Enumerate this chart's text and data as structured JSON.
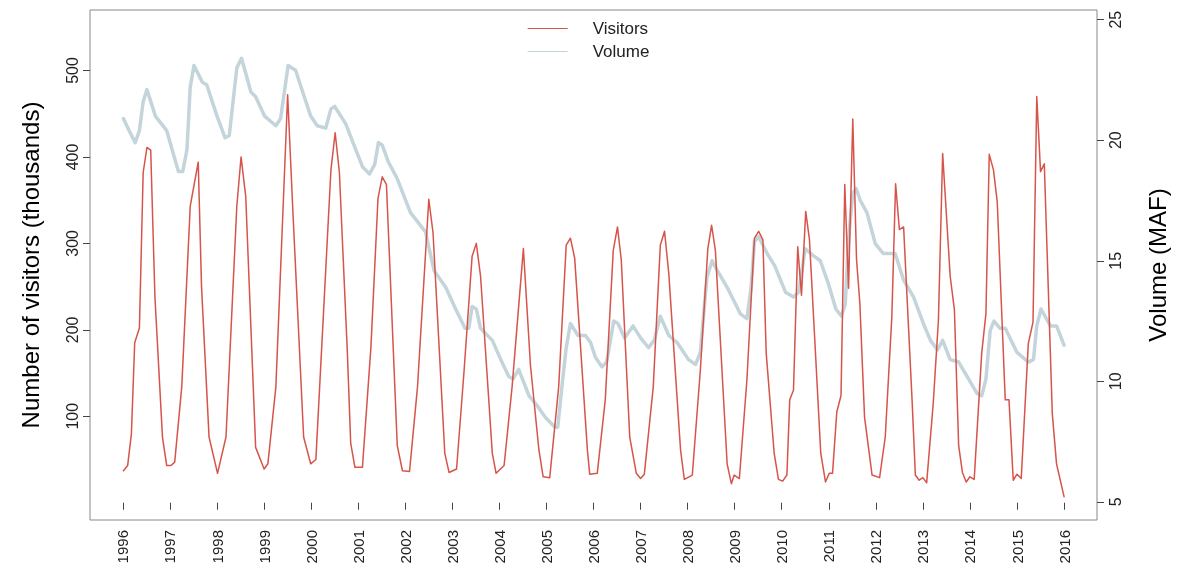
{
  "chart_data": {
    "type": "line",
    "xlabel": null,
    "ylabel": "Number of visitors (thousands)",
    "y2label": "Volume (MAF)",
    "xlim": [
      1995.3,
      2016.7
    ],
    "xticks": [
      1996,
      1997,
      1998,
      1999,
      2000,
      2001,
      2002,
      2003,
      2004,
      2005,
      2006,
      2007,
      2008,
      2009,
      2010,
      2011,
      2012,
      2013,
      2014,
      2015,
      2016
    ],
    "ylim": [
      -20,
      570
    ],
    "yticks": [
      100,
      200,
      300,
      400,
      500
    ],
    "y2lim": [
      4.25,
      25.4
    ],
    "y2ticks": [
      5,
      10,
      15,
      20,
      25
    ],
    "legend": "top",
    "grid": false,
    "series": [
      {
        "name": "Visitors",
        "color": "#d6544a",
        "x": [
          1996.01,
          1996.1,
          1996.18,
          1996.25,
          1996.35,
          1996.43,
          1996.51,
          1996.59,
          1996.68,
          1996.84,
          1996.93,
          1997.02,
          1997.1,
          1997.25,
          1997.43,
          1997.6,
          1997.67,
          1997.83,
          1998.01,
          1998.19,
          1998.42,
          1998.51,
          1998.61,
          1998.82,
          1999.0,
          1999.08,
          1999.25,
          1999.5,
          1999.62,
          1999.84,
          1999.99,
          2000.1,
          2000.42,
          2000.51,
          2000.6,
          2000.77,
          2000.84,
          2000.93,
          2001.09,
          2001.27,
          2001.42,
          2001.51,
          2001.6,
          2001.83,
          2001.94,
          2002.09,
          2002.26,
          2002.5,
          2002.59,
          2002.84,
          2002.93,
          2003.09,
          2003.25,
          2003.42,
          2003.51,
          2003.6,
          2003.85,
          2003.93,
          2004.1,
          2004.27,
          2004.51,
          2004.66,
          2004.84,
          2004.93,
          2005.07,
          2005.26,
          2005.42,
          2005.51,
          2005.6,
          2005.87,
          2005.92,
          2006.08,
          2006.25,
          2006.42,
          2006.51,
          2006.59,
          2006.77,
          2006.91,
          2007.0,
          2007.08,
          2007.27,
          2007.42,
          2007.51,
          2007.6,
          2007.85,
          2007.93,
          2008.1,
          2008.27,
          2008.43,
          2008.51,
          2008.59,
          2008.84,
          2008.93,
          2008.99,
          2009.1,
          2009.26,
          2009.42,
          2009.51,
          2009.6,
          2009.67,
          2009.84,
          2009.93,
          2010.02,
          2010.11,
          2010.17,
          2010.25,
          2010.34,
          2010.42,
          2010.51,
          2010.59,
          2010.83,
          2010.93,
          2011.01,
          2011.08,
          2011.17,
          2011.26,
          2011.34,
          2011.42,
          2011.51,
          2011.59,
          2011.66,
          2011.76,
          2011.92,
          2012.08,
          2012.2,
          2012.34,
          2012.42,
          2012.5,
          2012.59,
          2012.77,
          2012.84,
          2012.92,
          2013.0,
          2013.08,
          2013.22,
          2013.33,
          2013.42,
          2013.58,
          2013.67,
          2013.76,
          2013.84,
          2013.92,
          2014.0,
          2014.09,
          2014.25,
          2014.34,
          2014.41,
          2014.5,
          2014.58,
          2014.75,
          2014.83,
          2014.92,
          2015.0,
          2015.09,
          2015.24,
          2015.34,
          2015.42,
          2015.5,
          2015.58,
          2015.75,
          2015.84,
          2016.0
        ],
        "values": [
          37,
          43,
          80,
          185,
          202,
          382,
          411,
          408,
          238,
          76,
          43,
          43,
          47,
          134,
          343,
          394,
          250,
          76,
          34,
          76,
          343,
          400,
          354,
          64,
          39,
          45,
          134,
          472,
          327,
          76,
          45,
          50,
          385,
          428,
          382,
          173,
          69,
          41,
          41,
          180,
          352,
          377,
          368,
          66,
          37,
          36,
          134,
          351,
          312,
          57,
          35,
          39,
          153,
          285,
          300,
          262,
          57,
          34,
          43,
          134,
          294,
          159,
          61,
          30,
          29,
          134,
          298,
          306,
          283,
          61,
          33,
          34,
          119,
          292,
          319,
          281,
          76,
          34,
          28,
          33,
          134,
          298,
          314,
          265,
          61,
          27,
          32,
          153,
          294,
          321,
          292,
          45,
          22,
          32,
          28,
          142,
          306,
          314,
          304,
          173,
          57,
          27,
          25,
          32,
          119,
          130,
          296,
          240,
          337,
          304,
          57,
          24,
          34,
          34,
          105,
          124,
          368,
          248,
          444,
          281,
          231,
          99,
          32,
          29,
          76,
          215,
          369,
          316,
          319,
          119,
          32,
          26,
          29,
          23,
          115,
          211,
          404,
          262,
          223,
          66,
          35,
          24,
          30,
          27,
          173,
          219,
          403,
          385,
          348,
          119,
          119,
          26,
          33,
          28,
          184,
          209,
          470,
          383,
          392,
          103,
          45,
          7
        ]
      },
      {
        "name": "Volume",
        "color": "#c3d5da",
        "axis": "y2",
        "x": [
          1996.01,
          1996.13,
          1996.26,
          1996.35,
          1996.43,
          1996.51,
          1996.69,
          1996.81,
          1996.93,
          1997.09,
          1997.18,
          1997.27,
          1997.36,
          1997.43,
          1997.51,
          1997.69,
          1997.78,
          1998.0,
          1998.17,
          1998.26,
          1998.42,
          1998.52,
          1998.72,
          1998.82,
          1999.01,
          1999.25,
          1999.35,
          1999.51,
          1999.67,
          1999.82,
          1999.99,
          2000.13,
          2000.31,
          2000.42,
          2000.5,
          2000.73,
          2000.95,
          2001.09,
          2001.24,
          2001.35,
          2001.43,
          2001.51,
          2001.64,
          2001.83,
          2002.11,
          2002.43,
          2002.61,
          2002.86,
          2003.07,
          2003.27,
          2003.35,
          2003.42,
          2003.51,
          2003.6,
          2003.85,
          2004.03,
          2004.2,
          2004.29,
          2004.41,
          2004.63,
          2004.8,
          2004.98,
          2005.18,
          2005.24,
          2005.33,
          2005.42,
          2005.51,
          2005.67,
          2005.83,
          2005.94,
          2006.04,
          2006.18,
          2006.28,
          2006.43,
          2006.52,
          2006.66,
          2006.84,
          2007.0,
          2007.17,
          2007.29,
          2007.42,
          2007.6,
          2007.78,
          2008.02,
          2008.17,
          2008.27,
          2008.41,
          2008.52,
          2008.63,
          2008.84,
          2009.12,
          2009.26,
          2009.35,
          2009.42,
          2009.51,
          2009.69,
          2009.85,
          2010.08,
          2010.25,
          2010.36,
          2010.5,
          2010.68,
          2010.82,
          2011.0,
          2011.15,
          2011.27,
          2011.35,
          2011.42,
          2011.51,
          2011.58,
          2011.67,
          2011.81,
          2011.99,
          2012.16,
          2012.3,
          2012.41,
          2012.59,
          2012.8,
          2013.01,
          2013.16,
          2013.31,
          2013.42,
          2013.58,
          2013.76,
          2013.97,
          2014.15,
          2014.25,
          2014.34,
          2014.43,
          2014.51,
          2014.64,
          2014.75,
          2015.0,
          2015.24,
          2015.35,
          2015.42,
          2015.51,
          2015.71,
          2015.84,
          2016.0
        ],
        "values": [
          20.9,
          20.4,
          19.9,
          20.4,
          21.6,
          22.1,
          21.0,
          20.7,
          20.4,
          19.3,
          18.7,
          18.7,
          19.6,
          22.2,
          23.1,
          22.4,
          22.3,
          21.0,
          20.1,
          20.2,
          23.0,
          23.4,
          22.0,
          21.8,
          21.0,
          20.6,
          20.9,
          23.1,
          22.9,
          22.0,
          21.0,
          20.6,
          20.5,
          21.3,
          21.4,
          20.7,
          19.6,
          18.9,
          18.6,
          19.0,
          19.9,
          19.8,
          19.1,
          18.4,
          17.0,
          16.2,
          14.6,
          13.9,
          13.0,
          12.2,
          12.2,
          13.1,
          13.0,
          12.2,
          11.7,
          10.9,
          10.2,
          10.1,
          10.5,
          9.4,
          9.0,
          8.5,
          8.1,
          8.1,
          9.8,
          11.4,
          12.4,
          11.9,
          11.9,
          11.6,
          11.0,
          10.6,
          10.8,
          12.5,
          12.4,
          11.8,
          12.3,
          11.8,
          11.4,
          11.7,
          12.7,
          11.9,
          11.6,
          10.9,
          10.7,
          11.2,
          14.3,
          15.0,
          14.6,
          13.9,
          12.8,
          12.6,
          13.9,
          15.8,
          16.0,
          15.3,
          14.8,
          13.7,
          13.5,
          13.7,
          15.5,
          15.2,
          15.0,
          14.0,
          13.0,
          12.7,
          13.2,
          15.9,
          17.8,
          18.0,
          17.5,
          17.0,
          15.7,
          15.3,
          15.3,
          15.3,
          14.2,
          13.5,
          12.4,
          11.7,
          11.3,
          11.7,
          10.9,
          10.8,
          10.1,
          9.5,
          9.4,
          10.1,
          12.1,
          12.5,
          12.2,
          12.2,
          11.2,
          10.8,
          10.9,
          12.3,
          13.0,
          12.3,
          12.3,
          11.5
        ]
      }
    ]
  }
}
